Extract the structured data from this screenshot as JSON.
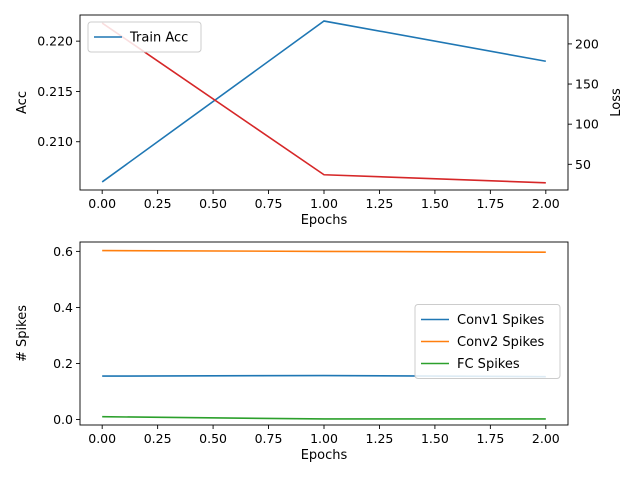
{
  "chart_data": [
    {
      "type": "line",
      "x": [
        0,
        1,
        2
      ],
      "xlabel": "Epochs",
      "ylabel": "Acc",
      "ylabel_right": "Loss",
      "xlim": [
        -0.1,
        2.1
      ],
      "ylim": [
        0.2052,
        0.2226
      ],
      "ylim_right": [
        18,
        236
      ],
      "xticks": [
        "0.00",
        "0.25",
        "0.50",
        "0.75",
        "1.00",
        "1.25",
        "1.50",
        "1.75",
        "2.00"
      ],
      "xtick_values": [
        0,
        0.25,
        0.5,
        0.75,
        1.0,
        1.25,
        1.5,
        1.75,
        2.0
      ],
      "yticks": [
        "0.210",
        "0.215",
        "0.220"
      ],
      "ytick_values": [
        0.21,
        0.215,
        0.22
      ],
      "yticks_right": [
        "50",
        "100",
        "150",
        "200"
      ],
      "ytick_values_right": [
        50,
        100,
        150,
        200
      ],
      "series": [
        {
          "name": "Train Acc",
          "axis": "left",
          "color": "#1f77b4",
          "values": [
            0.206,
            0.222,
            0.218
          ]
        },
        {
          "axis": "right",
          "color": "#d62728",
          "values": [
            226,
            37,
            27
          ]
        }
      ],
      "legend": {
        "placement": "top-left",
        "entries": [
          "Train Acc"
        ]
      },
      "grid": false
    },
    {
      "type": "line",
      "x": [
        0,
        1,
        2
      ],
      "xlabel": "Epochs",
      "ylabel": "# Spikes",
      "xlim": [
        -0.1,
        2.1
      ],
      "ylim": [
        -0.0195,
        0.6335
      ],
      "xticks": [
        "0.00",
        "0.25",
        "0.50",
        "0.75",
        "1.00",
        "1.25",
        "1.50",
        "1.75",
        "2.00"
      ],
      "xtick_values": [
        0,
        0.25,
        0.5,
        0.75,
        1.0,
        1.25,
        1.5,
        1.75,
        2.0
      ],
      "yticks": [
        "0.0",
        "0.2",
        "0.4",
        "0.6"
      ],
      "ytick_values": [
        0.0,
        0.2,
        0.4,
        0.6
      ],
      "series": [
        {
          "name": "Conv1 Spikes",
          "color": "#1f77b4",
          "values": [
            0.155,
            0.157,
            0.153
          ]
        },
        {
          "name": "Conv2 Spikes",
          "color": "#ff7f0e",
          "values": [
            0.603,
            0.6,
            0.597
          ]
        },
        {
          "name": "FC Spikes",
          "color": "#2ca02c",
          "values": [
            0.01,
            0.002,
            0.002
          ]
        }
      ],
      "legend": {
        "placement": "center-right",
        "entries": [
          "Conv1 Spikes",
          "Conv2 Spikes",
          "FC Spikes"
        ]
      },
      "grid": false
    }
  ]
}
